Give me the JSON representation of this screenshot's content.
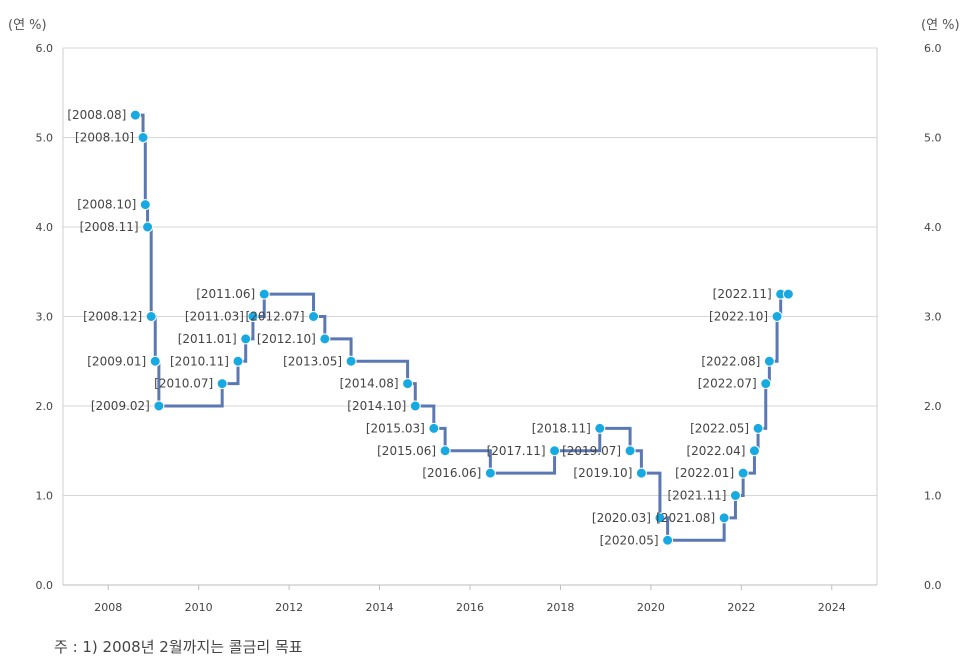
{
  "chart_data": {
    "type": "line",
    "step": true,
    "y_unit_left": "(연 %)",
    "y_unit_right": "(연 %)",
    "ylim": [
      0,
      6
    ],
    "yticks": [
      "0.0",
      "1.0",
      "2.0",
      "3.0",
      "4.0",
      "5.0",
      "6.0"
    ],
    "xlim": [
      2007,
      2025
    ],
    "xticks": [
      "2008",
      "2010",
      "2012",
      "2014",
      "2016",
      "2018",
      "2020",
      "2022",
      "2024"
    ],
    "grid": true,
    "line_color": "#5b78b5",
    "marker_color": "#17a9e1",
    "footnote": "주 : 1) 2008년 2월까지는 콜금리 목표",
    "points": [
      {
        "label": "[2008.08]",
        "x": 2008.6,
        "y": 5.25
      },
      {
        "label": "[2008.10]",
        "x": 2008.77,
        "y": 5.0
      },
      {
        "label": "[2008.10]",
        "x": 2008.82,
        "y": 4.25
      },
      {
        "label": "[2008.11]",
        "x": 2008.87,
        "y": 4.0
      },
      {
        "label": "[2008.12]",
        "x": 2008.95,
        "y": 3.0
      },
      {
        "label": "[2009.01]",
        "x": 2009.04,
        "y": 2.5
      },
      {
        "label": "[2009.02]",
        "x": 2009.12,
        "y": 2.0
      },
      {
        "label": "[2010.07]",
        "x": 2010.52,
        "y": 2.25
      },
      {
        "label": "[2010.11]",
        "x": 2010.87,
        "y": 2.5
      },
      {
        "label": "[2011.01]",
        "x": 2011.04,
        "y": 2.75
      },
      {
        "label": "[2011.03]",
        "x": 2011.2,
        "y": 3.0
      },
      {
        "label": "[2011.06]",
        "x": 2011.45,
        "y": 3.25
      },
      {
        "label": "[2012.07]",
        "x": 2012.54,
        "y": 3.0
      },
      {
        "label": "[2012.10]",
        "x": 2012.79,
        "y": 2.75
      },
      {
        "label": "[2013.05]",
        "x": 2013.37,
        "y": 2.5
      },
      {
        "label": "[2014.08]",
        "x": 2014.62,
        "y": 2.25
      },
      {
        "label": "[2014.10]",
        "x": 2014.79,
        "y": 2.0
      },
      {
        "label": "[2015.03]",
        "x": 2015.2,
        "y": 1.75
      },
      {
        "label": "[2015.06]",
        "x": 2015.45,
        "y": 1.5
      },
      {
        "label": "[2016.06]",
        "x": 2016.45,
        "y": 1.25
      },
      {
        "label": "[2017.11]",
        "x": 2017.87,
        "y": 1.5
      },
      {
        "label": "[2018.11]",
        "x": 2018.87,
        "y": 1.75
      },
      {
        "label": "[2019.07]",
        "x": 2019.54,
        "y": 1.5
      },
      {
        "label": "[2019.10]",
        "x": 2019.79,
        "y": 1.25
      },
      {
        "label": "[2020.03]",
        "x": 2020.2,
        "y": 0.75
      },
      {
        "label": "[2020.05]",
        "x": 2020.37,
        "y": 0.5
      },
      {
        "label": "[2021.08]",
        "x": 2021.62,
        "y": 0.75
      },
      {
        "label": "[2021.11]",
        "x": 2021.87,
        "y": 1.0
      },
      {
        "label": "[2022.01]",
        "x": 2022.04,
        "y": 1.25
      },
      {
        "label": "[2022.04]",
        "x": 2022.29,
        "y": 1.5
      },
      {
        "label": "[2022.05]",
        "x": 2022.37,
        "y": 1.75
      },
      {
        "label": "[2022.07]",
        "x": 2022.54,
        "y": 2.25
      },
      {
        "label": "[2022.08]",
        "x": 2022.62,
        "y": 2.5
      },
      {
        "label": "[2022.10]",
        "x": 2022.79,
        "y": 3.0
      },
      {
        "label": "[2022.11]",
        "x": 2022.87,
        "y": 3.25
      },
      {
        "label": "",
        "x": 2023.04,
        "y": 3.25
      }
    ]
  }
}
